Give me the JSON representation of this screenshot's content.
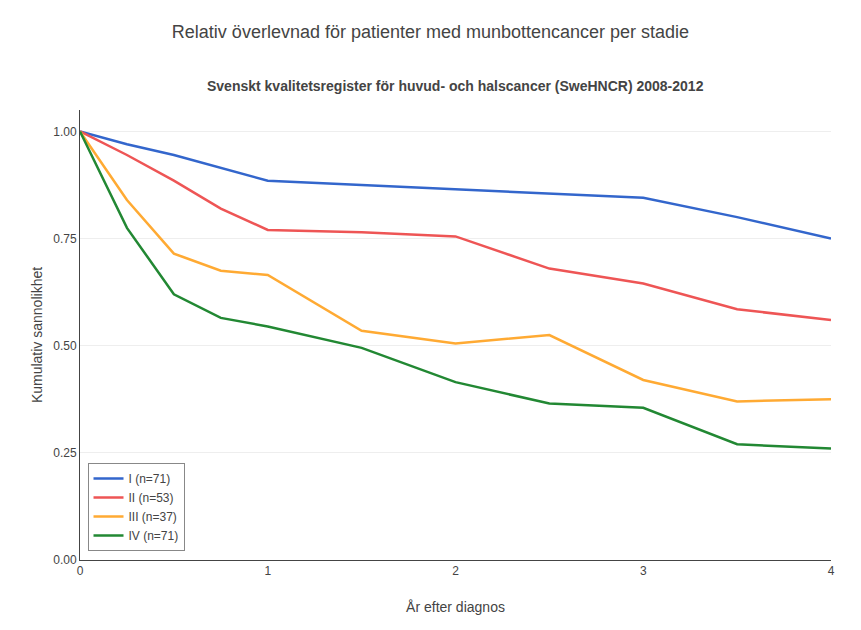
{
  "chart_data": {
    "type": "line",
    "title": "Relativ överlevnad för patienter med munbottencancer per stadie",
    "subtitle": "Svenskt kvalitetsregister för huvud- och halscancer (SweHNCR) 2008-2012",
    "xlabel": "År efter diagnos",
    "ylabel": "Kumulativ sannolikhet",
    "x": [
      0,
      0.25,
      0.5,
      0.75,
      1.0,
      1.5,
      2.0,
      2.5,
      3.0,
      3.5,
      4.0
    ],
    "series": [
      {
        "name": "I (n=71)",
        "color": "#3366cc",
        "values": [
          1.0,
          0.97,
          0.945,
          0.915,
          0.885,
          0.875,
          0.865,
          0.855,
          0.845,
          0.8,
          0.75
        ]
      },
      {
        "name": "II (n=53)",
        "color": "#ee5555",
        "values": [
          1.0,
          0.945,
          0.885,
          0.82,
          0.77,
          0.765,
          0.755,
          0.68,
          0.645,
          0.585,
          0.56
        ]
      },
      {
        "name": "III (n=37)",
        "color": "#ffaa33",
        "values": [
          1.0,
          0.84,
          0.715,
          0.675,
          0.665,
          0.535,
          0.505,
          0.525,
          0.42,
          0.37,
          0.375
        ]
      },
      {
        "name": "IV (n=71)",
        "color": "#228833",
        "values": [
          1.0,
          0.775,
          0.62,
          0.565,
          0.545,
          0.495,
          0.415,
          0.365,
          0.355,
          0.27,
          0.26
        ]
      }
    ],
    "xlim": [
      0,
      4
    ],
    "ylim": [
      0.0,
      1.05
    ],
    "xticks": [
      0,
      1,
      2,
      3,
      4
    ],
    "yticks": [
      {
        "value": 0,
        "label": "0.00"
      },
      0.25,
      {
        "value": 0.5,
        "label": "0.50"
      },
      0.75,
      {
        "value": 1,
        "label": "1.00"
      }
    ],
    "grid": "y",
    "legend": "lower left"
  }
}
